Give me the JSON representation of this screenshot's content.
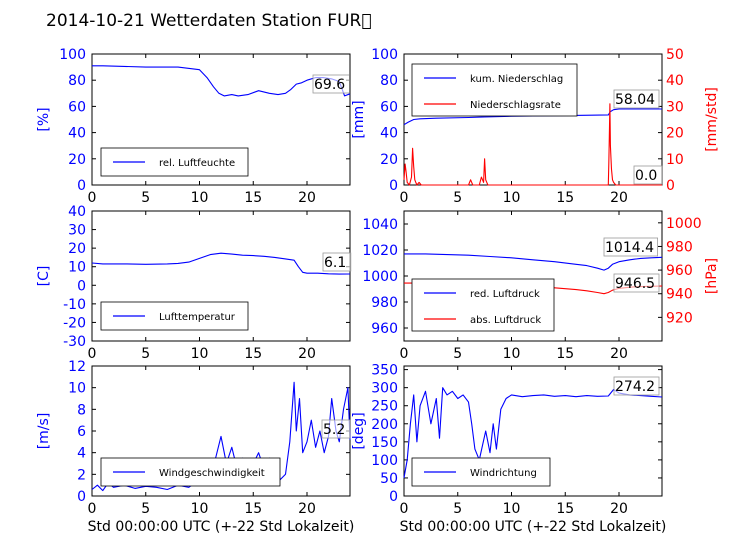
{
  "figure": {
    "title": "2014-10-21 Wetterdaten Station FUR\u0000"
  },
  "colors": {
    "primary": "#0000ff",
    "secondary": "#ff0000",
    "grid": "#000000"
  },
  "chart_data": [
    {
      "id": "humidity",
      "type": "line",
      "ylabel": "[%]",
      "xlabel": "",
      "xlim": [
        0,
        24
      ],
      "ylim": [
        0,
        100
      ],
      "xticks": [
        0,
        5,
        10,
        15,
        20
      ],
      "yticks": [
        0,
        20,
        40,
        60,
        80,
        100
      ],
      "legend": {
        "placement": "lower-left",
        "entries": [
          {
            "name": "rel. Luftfeuchte",
            "color": "#0000ff"
          }
        ]
      },
      "annotation": "69.6",
      "series": [
        {
          "name": "rel. Luftfeuchte",
          "color": "#0000ff",
          "x": [
            0,
            1,
            3,
            5,
            8,
            10,
            10.7,
            11.3,
            11.8,
            12.3,
            13,
            13.6,
            14.5,
            15.5,
            16.5,
            17.3,
            18,
            18.5,
            19,
            19.5,
            20,
            20.8,
            21.5,
            22.3,
            23,
            23.5,
            24
          ],
          "y": [
            91,
            91,
            90.5,
            90,
            90,
            88,
            82,
            75,
            70,
            68,
            69,
            68,
            69,
            72,
            70,
            69,
            70,
            73,
            77,
            78,
            80,
            82,
            82,
            81,
            79,
            68,
            69.6
          ]
        }
      ]
    },
    {
      "id": "precipitation",
      "type": "line",
      "ylabel": "[mm]",
      "ylabel2": "[mm/std]",
      "xlabel": "",
      "xlim": [
        0,
        24
      ],
      "ylim": [
        0,
        100
      ],
      "ylim2": [
        0,
        50
      ],
      "xticks": [
        0,
        5,
        10,
        15,
        20
      ],
      "yticks": [
        0,
        20,
        40,
        60,
        80,
        100
      ],
      "yticks2": [
        0,
        10,
        20,
        30,
        40,
        50
      ],
      "legend": {
        "placement": "top-left",
        "entries": [
          {
            "name": "kum. Niederschlag",
            "color": "#0000ff"
          },
          {
            "name": "Niederschlagsrate",
            "color": "#ff0000"
          }
        ]
      },
      "annotation": "58.04",
      "annotation2": "0.0",
      "series": [
        {
          "name": "kum. Niederschlag",
          "color": "#0000ff",
          "axis": "left",
          "x": [
            0,
            0.4,
            0.9,
            1.5,
            3,
            6,
            7.5,
            10,
            15,
            19,
            19.2,
            19.5,
            20,
            24
          ],
          "y": [
            46,
            48,
            50,
            50.5,
            51,
            51.5,
            52,
            52.5,
            53,
            53.5,
            56,
            57.5,
            58,
            58.04
          ]
        },
        {
          "name": "Niederschlagsrate",
          "color": "#ff0000",
          "axis": "right",
          "x": [
            0,
            0.1,
            0.2,
            0.3,
            0.5,
            0.7,
            0.8,
            0.9,
            1.0,
            1.1,
            1.2,
            1.4,
            1.6,
            2,
            6,
            6.2,
            6.4,
            7,
            7.2,
            7.4,
            7.5,
            7.6,
            7.8,
            8,
            10,
            19,
            19.05,
            19.1,
            19.15,
            19.2,
            19.3,
            19.4,
            19.5,
            19.7,
            20,
            24
          ],
          "y": [
            2,
            8,
            5,
            1,
            0,
            3,
            14,
            7,
            2,
            1,
            0,
            1,
            0,
            0,
            0,
            2,
            0,
            0,
            3,
            1,
            10,
            2,
            0,
            0,
            0,
            0,
            8,
            18,
            31,
            15,
            6,
            2,
            1,
            0,
            0,
            0
          ]
        }
      ]
    },
    {
      "id": "temperature",
      "type": "line",
      "ylabel": "[C]",
      "xlabel": "",
      "xlim": [
        0,
        24
      ],
      "ylim": [
        -30,
        40
      ],
      "xticks": [
        0,
        5,
        10,
        15,
        20
      ],
      "yticks": [
        -30,
        -20,
        -10,
        0,
        10,
        20,
        30,
        40
      ],
      "legend": {
        "placement": "lower-left",
        "entries": [
          {
            "name": "Lufttemperatur",
            "color": "#0000ff"
          }
        ]
      },
      "annotation": "6.1",
      "series": [
        {
          "name": "Lufttemperatur",
          "color": "#0000ff",
          "x": [
            0,
            1,
            3,
            5,
            7,
            8,
            9,
            10,
            11,
            12,
            13,
            14,
            15,
            16,
            17,
            18,
            18.8,
            19.2,
            19.6,
            20,
            21,
            22,
            23,
            24
          ],
          "y": [
            12,
            11.5,
            11.5,
            11.3,
            11.5,
            11.8,
            12.5,
            14.5,
            16.5,
            17.3,
            16.8,
            16.2,
            16,
            15.6,
            15,
            14.2,
            13.5,
            10,
            7,
            6.5,
            6.5,
            6.2,
            6,
            6.1
          ]
        }
      ]
    },
    {
      "id": "pressure",
      "type": "line",
      "ylabel": "[hPa]",
      "xlabel": "",
      "xlim": [
        0,
        24
      ],
      "ylim": [
        950,
        1050
      ],
      "ylim2": [
        900,
        1010
      ],
      "xticks": [
        0,
        5,
        10,
        15,
        20
      ],
      "yticks": [
        960,
        980,
        1000,
        1020,
        1040
      ],
      "yticks2": [
        920,
        940,
        960,
        980,
        1000
      ],
      "legend": {
        "placement": "lower-left",
        "entries": [
          {
            "name": "red. Luftdruck",
            "color": "#0000ff"
          },
          {
            "name": "abs. Luftdruck",
            "color": "#ff0000"
          }
        ]
      },
      "annotation": "1014.4",
      "annotation2": "946.5",
      "series": [
        {
          "name": "red. Luftdruck",
          "color": "#0000ff",
          "axis": "left",
          "x": [
            0,
            2,
            4,
            6,
            8,
            10,
            12,
            14,
            16,
            17,
            18,
            18.6,
            19,
            19.4,
            20,
            21,
            22,
            23,
            24
          ],
          "y": [
            1017,
            1017,
            1016.5,
            1016,
            1015,
            1014,
            1012.5,
            1011,
            1009,
            1008,
            1006,
            1004.5,
            1006,
            1009,
            1011,
            1012.5,
            1013.5,
            1014,
            1014.4
          ]
        },
        {
          "name": "abs. Luftdruck",
          "color": "#ff0000",
          "axis": "right",
          "x": [
            0,
            2,
            4,
            6,
            8,
            10,
            12,
            14,
            16,
            17,
            18,
            18.6,
            19,
            19.4,
            20,
            21,
            22,
            23,
            24
          ],
          "y": [
            949,
            949,
            948.5,
            948,
            947.5,
            947,
            946,
            945,
            943.5,
            942.5,
            941,
            940,
            941,
            943,
            944.5,
            945.5,
            946,
            946.3,
            946.5
          ]
        }
      ]
    },
    {
      "id": "windspeed",
      "type": "line",
      "ylabel": "[m/s]",
      "xlabel": "Std 00:00:00 UTC (+-22 Std Lokalzeit)",
      "xlim": [
        0,
        24
      ],
      "ylim": [
        0,
        12
      ],
      "xticks": [
        0,
        5,
        10,
        15,
        20
      ],
      "yticks": [
        0,
        2,
        4,
        6,
        8,
        10,
        12
      ],
      "legend": {
        "placement": "lower-left",
        "entries": [
          {
            "name": "Windgeschwindigkeit",
            "color": "#0000ff"
          }
        ]
      },
      "annotation": "5.2",
      "series": [
        {
          "name": "Windgeschwindigkeit",
          "color": "#0000ff",
          "x": [
            0,
            0.5,
            1,
            1.5,
            2,
            3,
            4,
            5,
            6,
            7,
            8,
            9,
            10,
            10.5,
            11,
            11.5,
            12,
            12.5,
            13,
            13.5,
            14,
            14.5,
            15,
            15.5,
            16,
            16.5,
            17,
            17.5,
            18,
            18.4,
            18.8,
            19,
            19.3,
            19.6,
            20,
            20.4,
            20.8,
            21.2,
            21.6,
            22,
            22.3,
            22.7,
            23,
            23.4,
            23.8,
            24
          ],
          "y": [
            0.6,
            1,
            0.5,
            1.2,
            0.8,
            1,
            0.7,
            0.9,
            0.8,
            0.6,
            1,
            0.8,
            1.5,
            2.5,
            1.5,
            3.5,
            5.5,
            3,
            4.5,
            2.5,
            3.5,
            2,
            3,
            4,
            2.5,
            3.5,
            3,
            1.5,
            2,
            5,
            10.5,
            6,
            9,
            4,
            5,
            7,
            4.5,
            6,
            4,
            5.5,
            9,
            6,
            5,
            8,
            10,
            5.2
          ]
        }
      ]
    },
    {
      "id": "winddirection",
      "type": "line",
      "ylabel": "[deg]",
      "xlabel": "Std 00:00:00 UTC (+-22 Std Lokalzeit)",
      "xlim": [
        0,
        24
      ],
      "ylim": [
        0,
        360
      ],
      "xticks": [
        0,
        5,
        10,
        15,
        20
      ],
      "yticks": [
        0,
        50,
        100,
        150,
        200,
        250,
        300,
        350
      ],
      "legend": {
        "placement": "lower-left",
        "entries": [
          {
            "name": "Windrichtung",
            "color": "#0000ff"
          }
        ]
      },
      "annotation": "274.2",
      "series": [
        {
          "name": "Windrichtung",
          "color": "#0000ff",
          "x": [
            0,
            0.3,
            0.6,
            0.9,
            1.2,
            1.5,
            2,
            2.5,
            3,
            3.3,
            3.6,
            4,
            4.5,
            5,
            5.5,
            6,
            6.3,
            6.6,
            7,
            7.3,
            7.6,
            8,
            8.3,
            8.6,
            9,
            9.5,
            10,
            11,
            12,
            13,
            14,
            15,
            16,
            17,
            18,
            19,
            19.5,
            20,
            21,
            22,
            23,
            24
          ],
          "y": [
            50,
            100,
            200,
            280,
            150,
            250,
            290,
            200,
            270,
            160,
            300,
            280,
            290,
            270,
            280,
            260,
            200,
            130,
            100,
            140,
            180,
            120,
            200,
            130,
            240,
            270,
            280,
            275,
            278,
            280,
            276,
            278,
            275,
            278,
            276,
            277,
            295,
            285,
            280,
            278,
            276,
            274.2
          ]
        }
      ]
    }
  ]
}
